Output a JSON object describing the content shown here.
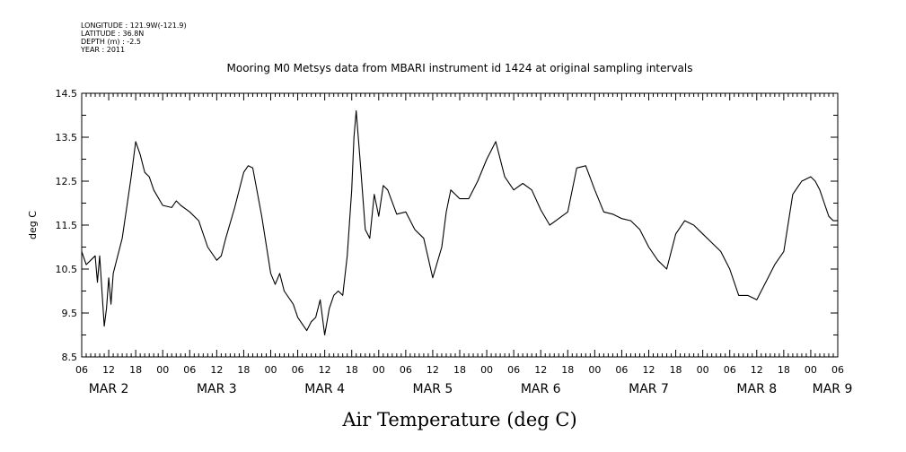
{
  "header": {
    "longitude": "LONGITUDE : 121.9W(-121.9)",
    "latitude": "LATITUDE : 36.8N",
    "depth": "DEPTH (m) : -2.5",
    "year": "YEAR : 2011"
  },
  "chart_data": {
    "type": "line",
    "title": "Mooring M0 Metsys data from MBARI instrument id 1424 at original sampling intervals",
    "bottom_title": "Air Temperature (deg C)",
    "ylabel": "deg C",
    "xlabel": "",
    "ylim": [
      8.5,
      14.5
    ],
    "y_ticks": [
      "8.5",
      "9.5",
      "10.5",
      "11.5",
      "12.5",
      "13.5",
      "14.5"
    ],
    "x_range": [
      "2011-03-02T06:00",
      "2011-03-09T06:00"
    ],
    "x_tick_labels": [
      "06",
      "12",
      "18",
      "00",
      "06",
      "12",
      "18",
      "00",
      "06",
      "12",
      "18",
      "00",
      "06",
      "12",
      "18",
      "00",
      "06",
      "12",
      "18",
      "00",
      "06",
      "12",
      "18",
      "00",
      "06",
      "12",
      "18",
      "00",
      "06"
    ],
    "day_labels": [
      "MAR 2",
      "MAR 3",
      "MAR 4",
      "MAR 5",
      "MAR 6",
      "MAR 7",
      "MAR 8",
      "MAR 9"
    ],
    "grid": false,
    "legend": "none",
    "line_color": "#000000",
    "series": [
      {
        "x": [
          "2011-03-02T06:00",
          "2011-03-02T07:00",
          "2011-03-02T08:00",
          "2011-03-02T09:00",
          "2011-03-02T09:30",
          "2011-03-02T10:00",
          "2011-03-02T11:00",
          "2011-03-02T11:30",
          "2011-03-02T12:00",
          "2011-03-02T12:30",
          "2011-03-02T13:00",
          "2011-03-02T14:00",
          "2011-03-02T15:00",
          "2011-03-02T16:00",
          "2011-03-02T17:00",
          "2011-03-02T18:00",
          "2011-03-02T19:00",
          "2011-03-02T20:00",
          "2011-03-02T21:00",
          "2011-03-02T22:00",
          "2011-03-03T00:00",
          "2011-03-03T02:00",
          "2011-03-03T03:00",
          "2011-03-03T04:00",
          "2011-03-03T06:00",
          "2011-03-03T08:00",
          "2011-03-03T10:00",
          "2011-03-03T12:00",
          "2011-03-03T13:00",
          "2011-03-03T14:00",
          "2011-03-03T16:00",
          "2011-03-03T17:00",
          "2011-03-03T18:00",
          "2011-03-03T19:00",
          "2011-03-03T20:00",
          "2011-03-03T22:00",
          "2011-03-04T00:00",
          "2011-03-04T01:00",
          "2011-03-04T02:00",
          "2011-03-04T03:00",
          "2011-03-04T05:00",
          "2011-03-04T06:00",
          "2011-03-04T08:00",
          "2011-03-04T09:00",
          "2011-03-04T10:00",
          "2011-03-04T11:00",
          "2011-03-04T12:00",
          "2011-03-04T13:00",
          "2011-03-04T14:00",
          "2011-03-04T15:00",
          "2011-03-04T16:00",
          "2011-03-04T17:00",
          "2011-03-04T18:00",
          "2011-03-04T18:30",
          "2011-03-04T19:00",
          "2011-03-04T20:00",
          "2011-03-04T21:00",
          "2011-03-04T22:00",
          "2011-03-04T23:00",
          "2011-03-05T00:00",
          "2011-03-05T01:00",
          "2011-03-05T02:00",
          "2011-03-05T04:00",
          "2011-03-05T06:00",
          "2011-03-05T08:00",
          "2011-03-05T09:00",
          "2011-03-05T10:00",
          "2011-03-05T12:00",
          "2011-03-05T14:00",
          "2011-03-05T15:00",
          "2011-03-05T16:00",
          "2011-03-05T18:00",
          "2011-03-05T20:00",
          "2011-03-05T22:00",
          "2011-03-06T00:00",
          "2011-03-06T02:00",
          "2011-03-06T04:00",
          "2011-03-06T06:00",
          "2011-03-06T08:00",
          "2011-03-06T10:00",
          "2011-03-06T12:00",
          "2011-03-06T14:00",
          "2011-03-06T16:00",
          "2011-03-06T18:00",
          "2011-03-06T20:00",
          "2011-03-06T22:00",
          "2011-03-07T00:00",
          "2011-03-07T02:00",
          "2011-03-07T04:00",
          "2011-03-07T06:00",
          "2011-03-07T08:00",
          "2011-03-07T10:00",
          "2011-03-07T12:00",
          "2011-03-07T14:00",
          "2011-03-07T16:00",
          "2011-03-07T18:00",
          "2011-03-07T20:00",
          "2011-03-07T22:00",
          "2011-03-08T00:00",
          "2011-03-08T02:00",
          "2011-03-08T04:00",
          "2011-03-08T06:00",
          "2011-03-08T08:00",
          "2011-03-08T10:00",
          "2011-03-08T12:00",
          "2011-03-08T14:00",
          "2011-03-08T16:00",
          "2011-03-08T18:00",
          "2011-03-08T20:00",
          "2011-03-08T22:00",
          "2011-03-09T00:00",
          "2011-03-09T01:00",
          "2011-03-09T02:00",
          "2011-03-09T03:00",
          "2011-03-09T04:00",
          "2011-03-09T05:00",
          "2011-03-09T06:00"
        ],
        "values": [
          10.9,
          10.6,
          10.7,
          10.8,
          10.2,
          10.8,
          9.2,
          9.6,
          10.3,
          9.7,
          10.4,
          10.8,
          11.2,
          11.9,
          12.6,
          13.4,
          13.1,
          12.7,
          12.6,
          12.3,
          11.95,
          11.9,
          12.05,
          11.95,
          11.8,
          11.6,
          11.0,
          10.7,
          10.8,
          11.2,
          11.9,
          12.3,
          12.7,
          12.85,
          12.8,
          11.7,
          10.4,
          10.15,
          10.4,
          10.0,
          9.7,
          9.4,
          9.1,
          9.3,
          9.4,
          9.8,
          9.0,
          9.6,
          9.9,
          10.0,
          9.9,
          10.8,
          12.3,
          13.5,
          14.1,
          12.8,
          11.4,
          11.2,
          12.2,
          11.7,
          12.4,
          12.3,
          11.75,
          11.8,
          11.4,
          11.3,
          11.2,
          10.3,
          11.0,
          11.8,
          12.3,
          12.1,
          12.1,
          12.5,
          13.0,
          13.4,
          12.6,
          12.3,
          12.45,
          12.3,
          11.85,
          11.5,
          11.65,
          11.8,
          12.8,
          12.85,
          12.3,
          11.8,
          11.75,
          11.65,
          11.6,
          11.4,
          11.0,
          10.7,
          10.5,
          11.3,
          11.6,
          11.5,
          11.3,
          11.1,
          10.9,
          10.5,
          9.9,
          9.9,
          9.8,
          10.2,
          10.6,
          10.9,
          12.2,
          12.5,
          12.6,
          12.5,
          12.3,
          12.0,
          11.7,
          11.6,
          11.6
        ]
      }
    ]
  }
}
